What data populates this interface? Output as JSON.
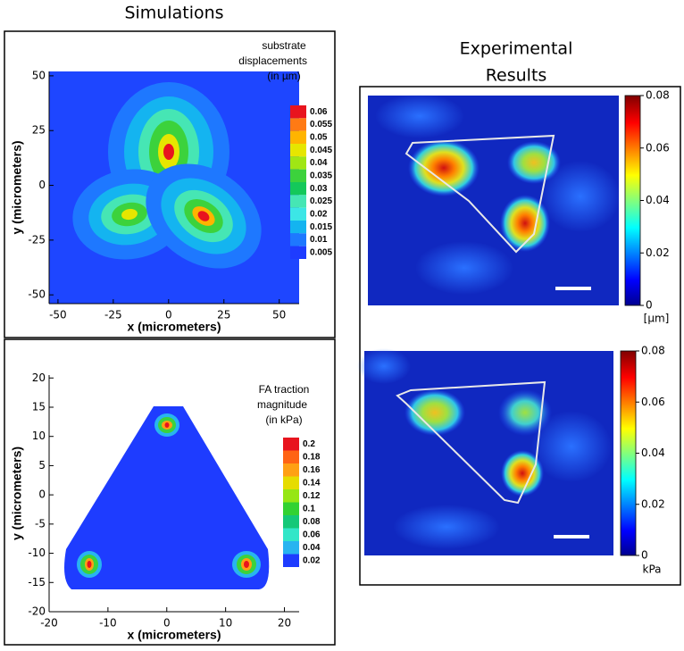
{
  "title": "Simulations",
  "right_title": [
    "Experimental",
    "Results"
  ],
  "chart_data": [
    {
      "type": "contour",
      "xlabel": "x (micrometers)",
      "ylabel": "y (micrometers)",
      "xlim": [
        -54,
        59
      ],
      "ylim": [
        -54,
        52
      ],
      "xticks": [
        -50,
        -25,
        0,
        25,
        50
      ],
      "yticks": [
        -50,
        -25,
        0,
        25,
        50
      ],
      "legend_title": [
        "substrate",
        "displacements",
        "(in µm)"
      ],
      "levels": [
        0.06,
        0.055,
        0.05,
        0.045,
        0.04,
        0.035,
        0.03,
        0.025,
        0.02,
        0.015,
        0.01,
        0.005
      ],
      "colors": [
        "#e8141e",
        "#ff7a14",
        "#ffb400",
        "#e6e600",
        "#a0e614",
        "#3cd23c",
        "#14c85a",
        "#46e6b4",
        "#3ce6e6",
        "#14b4f0",
        "#1e78ff",
        "#1e3cff"
      ]
    },
    {
      "type": "contour",
      "xlabel": "x (micrometers)",
      "ylabel": "y (micrometers)",
      "xlim": [
        -20,
        22.5
      ],
      "ylim": [
        -20,
        20.5
      ],
      "xticks": [
        -20,
        -10,
        0,
        10,
        20
      ],
      "yticks": [
        -20,
        -15,
        -10,
        -5,
        0,
        5,
        10,
        15,
        20
      ],
      "legend_title": [
        "FA traction",
        "magnitude",
        "(in kPa)"
      ],
      "levels": [
        0.2,
        0.18,
        0.16,
        0.14,
        0.12,
        0.1,
        0.08,
        0.06,
        0.04,
        0.02
      ],
      "colors": [
        "#e8141e",
        "#ff6414",
        "#ffa014",
        "#e6dc00",
        "#96e614",
        "#32d232",
        "#14c878",
        "#32e6c8",
        "#28b4f0",
        "#1e3cff"
      ]
    },
    {
      "type": "heatmap",
      "clim": [
        0,
        0.08
      ],
      "cticks": [
        0,
        0.02,
        0.04,
        0.06,
        0.08
      ],
      "unit": "[µm]"
    },
    {
      "type": "heatmap",
      "clim": [
        0,
        0.08
      ],
      "cticks": [
        0,
        0.02,
        0.04,
        0.06,
        0.08
      ],
      "unit": "kPa"
    }
  ]
}
